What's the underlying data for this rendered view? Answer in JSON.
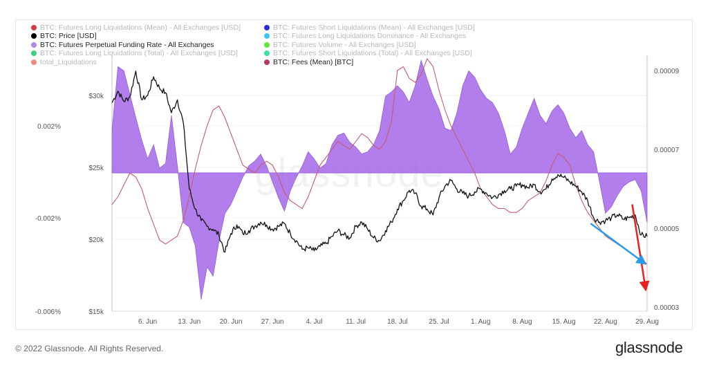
{
  "watermark": "glassnode",
  "footer": {
    "copyright": "© 2022 Glassnode. All Rights Reserved.",
    "brand": "glassnode"
  },
  "legend": [
    {
      "label": "BTC: Futures Long Liquidations (Mean) - All Exchanges [USD]",
      "color": "#d63a4a",
      "active": false
    },
    {
      "label": "BTC: Futures Short Liquidations (Mean) - All Exchanges [USD]",
      "color": "#2b2bd6",
      "active": false
    },
    {
      "label": "BTC: Price [USD]",
      "color": "#000000",
      "active": true
    },
    {
      "label": "BTC: Futures Long Liquidations Dominance - All Exchanges",
      "color": "#3fc6f0",
      "active": false
    },
    {
      "label": "BTC: Futures Perpetual Funding Rate - All Exchanges",
      "color": "#b18ae6",
      "active": true
    },
    {
      "label": "BTC: Futures Volume - All Exchanges [USD]",
      "color": "#5de83c",
      "active": false
    },
    {
      "label": "BTC: Futures Long Liquidations (Total) - All Exchanges [USD]",
      "color": "#3bd07f",
      "active": false
    },
    {
      "label": "BTC: Futures Short Liquidations (Total) - All Exchanges [USD]",
      "color": "#3be3a1",
      "active": false
    },
    {
      "label": "total_Liquidations",
      "color": "#f08a7e",
      "active": false
    },
    {
      "label": "BTC: Fees (Mean) [BTC]",
      "color": "#b83a5e",
      "active": true
    }
  ],
  "colors": {
    "funding": "#9d5ee6",
    "price": "#111111",
    "fees": "#c95a72",
    "arrow_red": "#e8201f",
    "arrow_blue": "#2a9be8"
  },
  "chart_data": {
    "type": "line",
    "x_labels": [
      "6. Jun",
      "13. Jun",
      "20. Jun",
      "27. Jun",
      "4. Jul",
      "11. Jul",
      "18. Jul",
      "25. Jul",
      "1. Aug",
      "8. Aug",
      "15. Aug",
      "22. Aug",
      "29. Aug"
    ],
    "x_range": [
      0,
      90
    ],
    "x_label_pos": [
      6,
      13,
      20,
      27,
      34,
      41,
      48,
      55,
      62,
      69,
      76,
      83,
      90
    ],
    "axes": {
      "price": {
        "ticks": [
          "$15k",
          "$20k",
          "$25k",
          "$30k"
        ],
        "tick_values": [
          15000,
          20000,
          25000,
          30000
        ],
        "range": [
          15000,
          32600
        ],
        "scale": "linear"
      },
      "funding": {
        "ticks": [
          "-0.006%",
          "-0.002%",
          "0.002%"
        ],
        "tick_values": [
          -0.006,
          -0.002,
          0.002
        ],
        "range": [
          -0.006,
          0.0052
        ],
        "note": "pseudo-log scale"
      },
      "fees": {
        "ticks": [
          "0.00003",
          "0.00005",
          "0.00007",
          "0.00009"
        ],
        "tick_values": [
          3e-05,
          5e-05,
          7e-05,
          9e-05
        ],
        "range": [
          3e-05,
          9.6e-05
        ]
      }
    },
    "series": [
      {
        "name": "BTC: Price [USD]",
        "axis": "price",
        "x": [
          0,
          1,
          2,
          3,
          4,
          5,
          6,
          7,
          8,
          9,
          10,
          11,
          12,
          13,
          14,
          15,
          16,
          17,
          18,
          19,
          20,
          21,
          22,
          23,
          24,
          25,
          26,
          27,
          28,
          29,
          30,
          31,
          32,
          33,
          34,
          35,
          36,
          37,
          38,
          39,
          40,
          41,
          42,
          43,
          44,
          45,
          46,
          47,
          48,
          49,
          50,
          51,
          52,
          53,
          54,
          55,
          56,
          57,
          58,
          59,
          60,
          61,
          62,
          63,
          64,
          65,
          66,
          67,
          68,
          69,
          70,
          71,
          72,
          73,
          74,
          75,
          76,
          77,
          78,
          79,
          80,
          81,
          82,
          83,
          84,
          85,
          86,
          87,
          88,
          89,
          90
        ],
        "values": [
          29500,
          30300,
          29600,
          29900,
          31700,
          29700,
          30000,
          31300,
          30500,
          30200,
          28800,
          29700,
          28100,
          23500,
          22100,
          21300,
          20900,
          20700,
          20300,
          19100,
          20400,
          21000,
          20400,
          20600,
          20900,
          21200,
          21000,
          20700,
          20900,
          21100,
          20400,
          19900,
          19300,
          19400,
          19200,
          19500,
          19700,
          20200,
          20600,
          20300,
          20100,
          20900,
          21200,
          20700,
          20100,
          19900,
          20600,
          21200,
          22100,
          22700,
          23400,
          23200,
          22300,
          22100,
          21700,
          22900,
          23700,
          24100,
          23500,
          23200,
          23000,
          23300,
          23500,
          23200,
          22900,
          23100,
          23400,
          23500,
          23700,
          23800,
          23600,
          23800,
          23300,
          23500,
          24200,
          24500,
          24300,
          24000,
          23700,
          23300,
          22700,
          21500,
          21200,
          21300,
          21500,
          21700,
          21400,
          21500,
          21700,
          20300,
          20200
        ]
      },
      {
        "name": "BTC: Futures Perpetual Funding Rate - All Exchanges",
        "axis": "funding",
        "x": [
          0,
          1,
          2,
          3,
          4,
          5,
          6,
          7,
          8,
          9,
          10,
          11,
          12,
          13,
          14,
          15,
          16,
          17,
          18,
          19,
          20,
          21,
          22,
          23,
          24,
          25,
          26,
          27,
          28,
          29,
          30,
          31,
          32,
          33,
          34,
          35,
          36,
          37,
          38,
          39,
          40,
          41,
          42,
          43,
          44,
          45,
          46,
          47,
          48,
          49,
          50,
          51,
          52,
          53,
          54,
          55,
          56,
          57,
          58,
          59,
          60,
          61,
          62,
          63,
          64,
          65,
          66,
          67,
          68,
          69,
          70,
          71,
          72,
          73,
          74,
          75,
          76,
          77,
          78,
          79,
          80,
          81,
          82,
          83,
          84,
          85,
          86,
          87,
          88,
          89,
          90
        ],
        "values": [
          0.0018,
          0.0048,
          0.0046,
          0.0035,
          0.0024,
          0.0014,
          0.0006,
          0.0012,
          0.0002,
          0.0004,
          0.0025,
          0.0003,
          -0.0022,
          -0.0024,
          -0.0032,
          -0.0055,
          -0.0041,
          -0.0045,
          -0.003,
          -0.0018,
          -0.0014,
          -0.0008,
          -0.0002,
          0.0003,
          0.0005,
          0.0008,
          0.0003,
          -0.0004,
          -0.0011,
          -0.0017,
          -0.0008,
          -0.0002,
          0.0003,
          0.0009,
          0.0006,
          0.0002,
          0.0004,
          0.0012,
          0.0016,
          0.0017,
          0.0013,
          0.0011,
          0.0008,
          0.0009,
          0.0012,
          0.0018,
          0.0034,
          0.0036,
          0.0039,
          0.0036,
          0.0031,
          0.0039,
          0.0051,
          0.0042,
          0.0034,
          0.0028,
          0.0019,
          0.0018,
          0.0026,
          0.0039,
          0.0046,
          0.0043,
          0.0037,
          0.0033,
          0.0031,
          0.0026,
          0.0018,
          0.0008,
          0.0011,
          0.0019,
          0.0026,
          0.0033,
          0.0025,
          0.0021,
          0.0027,
          0.003,
          0.0026,
          0.0019,
          0.0015,
          0.0018,
          0.0012,
          0.0009,
          -0.0004,
          -0.0018,
          -0.0015,
          -0.001,
          -0.0006,
          -0.0004,
          -0.0003,
          -0.0008,
          -0.0022
        ]
      },
      {
        "name": "BTC: Fees (Mean) [BTC]",
        "axis": "fees",
        "x": [
          0,
          1,
          2,
          3,
          4,
          5,
          6,
          7,
          8,
          9,
          10,
          11,
          12,
          13,
          14,
          15,
          16,
          17,
          18,
          19,
          20,
          21,
          22,
          23,
          24,
          25,
          26,
          27,
          28,
          29,
          30,
          31,
          32,
          33,
          34,
          35,
          36,
          37,
          38,
          39,
          40,
          41,
          42,
          43,
          44,
          45,
          46,
          47,
          48,
          49,
          50,
          51,
          52,
          53,
          54,
          55,
          56,
          57,
          58,
          59,
          60,
          61,
          62,
          63,
          64,
          65,
          66,
          67,
          68,
          69,
          70,
          71,
          72,
          73,
          74,
          75,
          76,
          77,
          78,
          79,
          80,
          81,
          82,
          83,
          84,
          85,
          86,
          87,
          88,
          89,
          90
        ],
        "values": [
          5.6e-05,
          5.8e-05,
          6.1e-05,
          6.4e-05,
          6.3e-05,
          6e-05,
          5.5e-05,
          5.1e-05,
          4.7e-05,
          4.6e-05,
          4.7e-05,
          4.8e-05,
          5.2e-05,
          5.8e-05,
          6.5e-05,
          7.1e-05,
          7.6e-05,
          8e-05,
          8.1e-05,
          7.8e-05,
          7.4e-05,
          7e-05,
          6.6e-05,
          6.5e-05,
          6.4e-05,
          6.6e-05,
          6.7e-05,
          6.6e-05,
          6.3e-05,
          5.9e-05,
          5.7e-05,
          5.6e-05,
          5.5e-05,
          5.8e-05,
          6.2e-05,
          6.6e-05,
          6.8e-05,
          7e-05,
          7.2e-05,
          7.1e-05,
          7e-05,
          7.2e-05,
          7.4e-05,
          7.3e-05,
          7.1e-05,
          7e-05,
          7.2e-05,
          7.7e-05,
          9e-05,
          9.1e-05,
          8.8e-05,
          8.7e-05,
          8.9e-05,
          9.3e-05,
          9.1e-05,
          8.5e-05,
          8e-05,
          7.6e-05,
          7.3e-05,
          7e-05,
          6.7e-05,
          6.4e-05,
          6e-05,
          5.8e-05,
          5.6e-05,
          5.5e-05,
          5.5e-05,
          5.4e-05,
          5.4e-05,
          5.5e-05,
          5.7e-05,
          5.8e-05,
          5.9e-05,
          6.2e-05,
          6.6e-05,
          6.9e-05,
          6.8e-05,
          6.6e-05,
          6.1e-05,
          5.7e-05,
          5.4e-05,
          5.2e-05,
          5e-05,
          4.8e-05,
          4.7e-05,
          4.6e-05,
          4.5e-05,
          4.4e-05,
          4.3e-05,
          4.2e-05,
          4.1e-05
        ]
      }
    ],
    "annotations": [
      {
        "type": "arrow",
        "color": "red",
        "from": {
          "x": 87.5,
          "funding": -0.0014
        },
        "to": {
          "x": 90,
          "funding": -0.0052
        }
      },
      {
        "type": "arrow",
        "color": "blue",
        "from": {
          "x": 80.5,
          "price": 21100
        },
        "to": {
          "x": 89.7,
          "price": 18300
        }
      }
    ],
    "title": "",
    "xlabel": "",
    "ylabel": ""
  }
}
